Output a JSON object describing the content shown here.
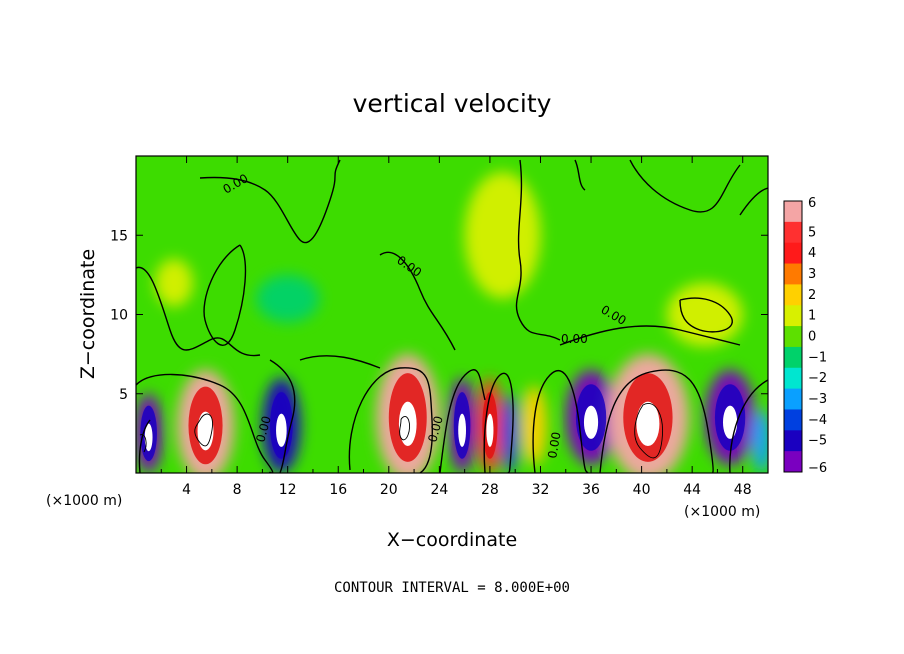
{
  "chart_data": {
    "type": "heatmap",
    "title": "vertical velocity",
    "xlabel": "X−coordinate",
    "ylabel": "Z−coordinate",
    "x_unit_left": "(×1000 m)",
    "x_unit_right": "(×1000 m)",
    "xlim": [
      0,
      50
    ],
    "ylim": [
      0,
      20
    ],
    "x_ticks": [
      "4",
      "8",
      "12",
      "16",
      "20",
      "24",
      "28",
      "32",
      "36",
      "40",
      "44",
      "48"
    ],
    "y_ticks": [
      "5",
      "10",
      "15"
    ],
    "colorbar_labels": [
      "6",
      "5",
      "4",
      "3",
      "2",
      "1",
      "0",
      "−1",
      "−2",
      "−3",
      "−4",
      "−5",
      "−6"
    ],
    "colorbar_colors": [
      "#f4a5a5",
      "#ff3030",
      "#ff1a1a",
      "#ff7a00",
      "#ffd000",
      "#d8f000",
      "#5de000",
      "#00d26a",
      "#00e6d0",
      "#0aa0ff",
      "#0040e0",
      "#1a00c0",
      "#7a00c0"
    ],
    "contour_interval_text": "CONTOUR INTERVAL = 8.000E+00",
    "contour_label": "0.00",
    "cells": [
      {
        "x": 1.0,
        "z": 2.5,
        "w": 2.2,
        "h": 5.0,
        "value": -6
      },
      {
        "x": 5.5,
        "z": 3.0,
        "w": 4.5,
        "h": 7.0,
        "value": 6
      },
      {
        "x": 11.5,
        "z": 3.0,
        "w": 3.0,
        "h": 6.0,
        "value": -5
      },
      {
        "x": 21.5,
        "z": 3.5,
        "w": 5.0,
        "h": 8.0,
        "value": 6
      },
      {
        "x": 25.8,
        "z": 3.0,
        "w": 2.2,
        "h": 6.0,
        "value": -6
      },
      {
        "x": 28.0,
        "z": 3.0,
        "w": 2.0,
        "h": 6.0,
        "value": 5
      },
      {
        "x": 29.6,
        "z": 2.5,
        "w": 1.4,
        "h": 5.0,
        "value": -4
      },
      {
        "x": 31.5,
        "z": 3.0,
        "w": 2.0,
        "h": 5.0,
        "value": 2
      },
      {
        "x": 36.0,
        "z": 3.5,
        "w": 4.0,
        "h": 6.0,
        "value": -6
      },
      {
        "x": 40.5,
        "z": 3.5,
        "w": 6.5,
        "h": 8.0,
        "value": 6
      },
      {
        "x": 47.0,
        "z": 3.5,
        "w": 4.0,
        "h": 6.0,
        "value": -6
      },
      {
        "x": 49.5,
        "z": 2.0,
        "w": 1.5,
        "h": 4.0,
        "value": -3
      },
      {
        "x": 3.0,
        "z": 12.0,
        "w": 3.0,
        "h": 3.0,
        "value": 1
      },
      {
        "x": 12.0,
        "z": 11.0,
        "w": 5.0,
        "h": 3.0,
        "value": -1
      },
      {
        "x": 29.0,
        "z": 15.0,
        "w": 6.0,
        "h": 8.0,
        "value": 1
      },
      {
        "x": 45.0,
        "z": 10.0,
        "w": 6.0,
        "h": 4.0,
        "value": 1
      }
    ]
  }
}
